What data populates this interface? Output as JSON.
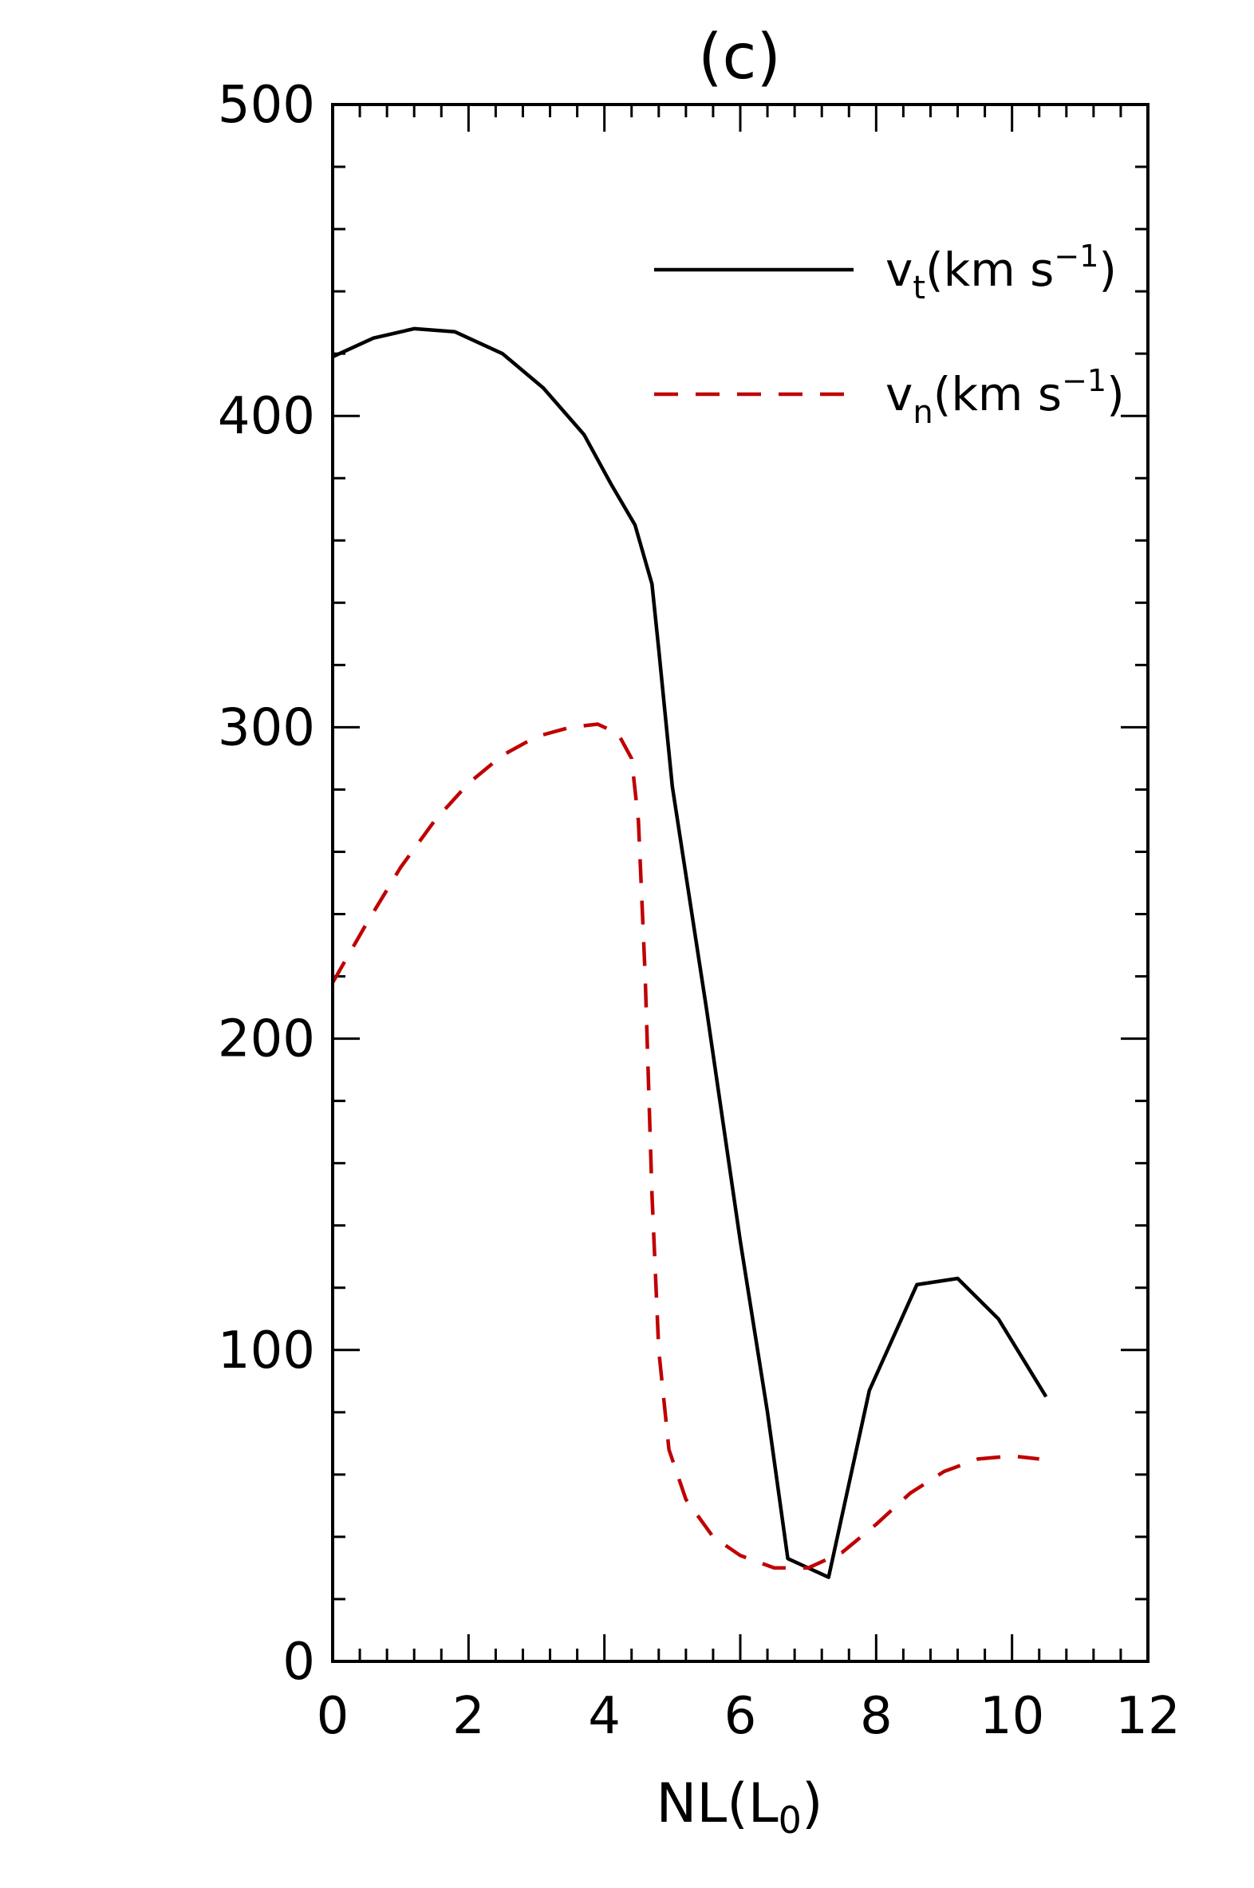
{
  "chart_data": {
    "type": "line",
    "title": "(c)",
    "xlabel": "NL(L",
    "xlabel_sub": "0",
    "xlabel_close": ")",
    "ylabel": "",
    "xlim": [
      0,
      12
    ],
    "ylim": [
      0,
      500
    ],
    "x_ticks": [
      "0",
      "2",
      "4",
      "6",
      "8",
      "10",
      "12"
    ],
    "y_ticks": [
      "0",
      "100",
      "200",
      "300",
      "400",
      "500"
    ],
    "legend_position": "top-right",
    "series": [
      {
        "name": "v_t(km s^-1)",
        "label": {
          "base": "v",
          "sub": "t",
          "main": "(km  s",
          "sup": "−1",
          "close": ")"
        },
        "color": "#000000",
        "dash": "solid",
        "points": [
          [
            0,
            419
          ],
          [
            0.6,
            425
          ],
          [
            1.2,
            428
          ],
          [
            1.8,
            427
          ],
          [
            2.5,
            420
          ],
          [
            3.1,
            409
          ],
          [
            3.7,
            394
          ],
          [
            4.1,
            378
          ],
          [
            4.45,
            365
          ],
          [
            4.7,
            346
          ],
          [
            4.8,
            325
          ],
          [
            5.0,
            281
          ],
          [
            5.5,
            210
          ],
          [
            6.0,
            135
          ],
          [
            6.4,
            80
          ],
          [
            6.7,
            33
          ],
          [
            7.3,
            27
          ],
          [
            7.9,
            87
          ],
          [
            8.6,
            121
          ],
          [
            9.2,
            123
          ],
          [
            9.8,
            110
          ],
          [
            10.5,
            85
          ]
        ]
      },
      {
        "name": "v_n(km s^-1)",
        "label": {
          "base": "v",
          "sub": "n",
          "main": "(km  s",
          "sup": "−1",
          "close": ")"
        },
        "color": "#c00000",
        "dash": "dashed",
        "points": [
          [
            0,
            218
          ],
          [
            0.5,
            237
          ],
          [
            1.0,
            255
          ],
          [
            1.5,
            270
          ],
          [
            2.0,
            282
          ],
          [
            2.5,
            291
          ],
          [
            3.0,
            297
          ],
          [
            3.5,
            300
          ],
          [
            3.9,
            301
          ],
          [
            4.2,
            298
          ],
          [
            4.4,
            290
          ],
          [
            4.5,
            270
          ],
          [
            4.6,
            220
          ],
          [
            4.7,
            150
          ],
          [
            4.8,
            100
          ],
          [
            4.95,
            68
          ],
          [
            5.2,
            52
          ],
          [
            5.6,
            40
          ],
          [
            6.0,
            34
          ],
          [
            6.5,
            30
          ],
          [
            7.0,
            30
          ],
          [
            7.5,
            35
          ],
          [
            8.0,
            44
          ],
          [
            8.5,
            54
          ],
          [
            9.0,
            61
          ],
          [
            9.5,
            65
          ],
          [
            10.0,
            66
          ],
          [
            10.4,
            65
          ]
        ]
      }
    ]
  }
}
